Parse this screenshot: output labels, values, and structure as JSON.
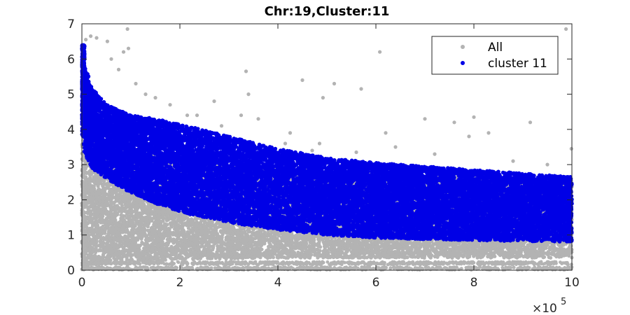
{
  "chart_data": {
    "type": "scatter",
    "title": "Chr:19,Cluster:11",
    "xlabel": "",
    "ylabel": "",
    "xlim": [
      0,
      1000000
    ],
    "ylim": [
      0,
      7
    ],
    "x_ticks": [
      0,
      200000,
      400000,
      600000,
      800000,
      1000000
    ],
    "x_tick_labels": [
      "0",
      "2",
      "4",
      "6",
      "8",
      "10"
    ],
    "x_exponent_label": "×10",
    "x_exponent_power": "5",
    "y_ticks": [
      0,
      1,
      2,
      3,
      4,
      5,
      6,
      7
    ],
    "y_tick_labels": [
      "0",
      "1",
      "2",
      "3",
      "4",
      "5",
      "6",
      "7"
    ],
    "grid": false,
    "legend": {
      "position": "top-right"
    },
    "series": [
      {
        "name": "All",
        "color": "#b3b3b3",
        "description_band": {
          "x": [
            0,
            20000,
            50000,
            100000,
            200000,
            300000,
            400000,
            500000,
            600000,
            700000,
            800000,
            900000,
            1000000
          ],
          "upper": [
            4.2,
            4.0,
            3.6,
            3.4,
            3.2,
            3.0,
            2.9,
            2.8,
            2.75,
            2.7,
            2.65,
            2.6,
            2.55
          ],
          "lower": [
            0.0,
            0.1,
            0.2,
            0.25,
            0.3,
            0.32,
            0.35,
            0.35,
            0.35,
            0.35,
            0.35,
            0.35,
            0.35
          ]
        },
        "baseline_rows": [
          0.05,
          0.2
        ],
        "outliers": [
          [
            8000,
            6.55
          ],
          [
            18000,
            6.65
          ],
          [
            30000,
            6.6
          ],
          [
            52000,
            6.5
          ],
          [
            93000,
            6.85
          ],
          [
            60000,
            6.0
          ],
          [
            75000,
            5.7
          ],
          [
            85000,
            6.2
          ],
          [
            95000,
            6.3
          ],
          [
            110000,
            5.3
          ],
          [
            130000,
            5.0
          ],
          [
            150000,
            4.9
          ],
          [
            180000,
            4.7
          ],
          [
            215000,
            4.4
          ],
          [
            235000,
            4.4
          ],
          [
            270000,
            4.8
          ],
          [
            285000,
            4.1
          ],
          [
            325000,
            4.4
          ],
          [
            335000,
            5.65
          ],
          [
            340000,
            5.0
          ],
          [
            360000,
            4.3
          ],
          [
            415000,
            3.6
          ],
          [
            425000,
            3.9
          ],
          [
            450000,
            5.4
          ],
          [
            470000,
            3.4
          ],
          [
            492000,
            4.9
          ],
          [
            485000,
            3.6
          ],
          [
            515000,
            5.3
          ],
          [
            570000,
            5.15
          ],
          [
            608000,
            6.2
          ],
          [
            620000,
            3.9
          ],
          [
            640000,
            3.5
          ],
          [
            700000,
            4.3
          ],
          [
            760000,
            4.2
          ],
          [
            790000,
            3.8
          ],
          [
            800000,
            4.35
          ],
          [
            830000,
            3.9
          ],
          [
            915000,
            4.2
          ],
          [
            950000,
            3.0
          ],
          [
            988000,
            6.85
          ],
          [
            999000,
            3.45
          ],
          [
            720000,
            3.3
          ],
          [
            560000,
            3.35
          ],
          [
            880000,
            3.1
          ]
        ]
      },
      {
        "name": "cluster 11",
        "color": "#0000e6",
        "description_band": {
          "x": [
            0,
            5000,
            20000,
            50000,
            100000,
            150000,
            200000,
            300000,
            400000,
            500000,
            600000,
            700000,
            800000,
            900000,
            1000000
          ],
          "upper": [
            6.4,
            5.9,
            5.2,
            4.7,
            4.4,
            4.3,
            4.15,
            3.8,
            3.45,
            3.2,
            3.05,
            2.95,
            2.85,
            2.75,
            2.65
          ],
          "lower": [
            4.1,
            3.3,
            2.9,
            2.6,
            2.2,
            1.9,
            1.65,
            1.35,
            1.15,
            1.0,
            0.92,
            0.88,
            0.85,
            0.82,
            0.8
          ]
        }
      }
    ]
  }
}
